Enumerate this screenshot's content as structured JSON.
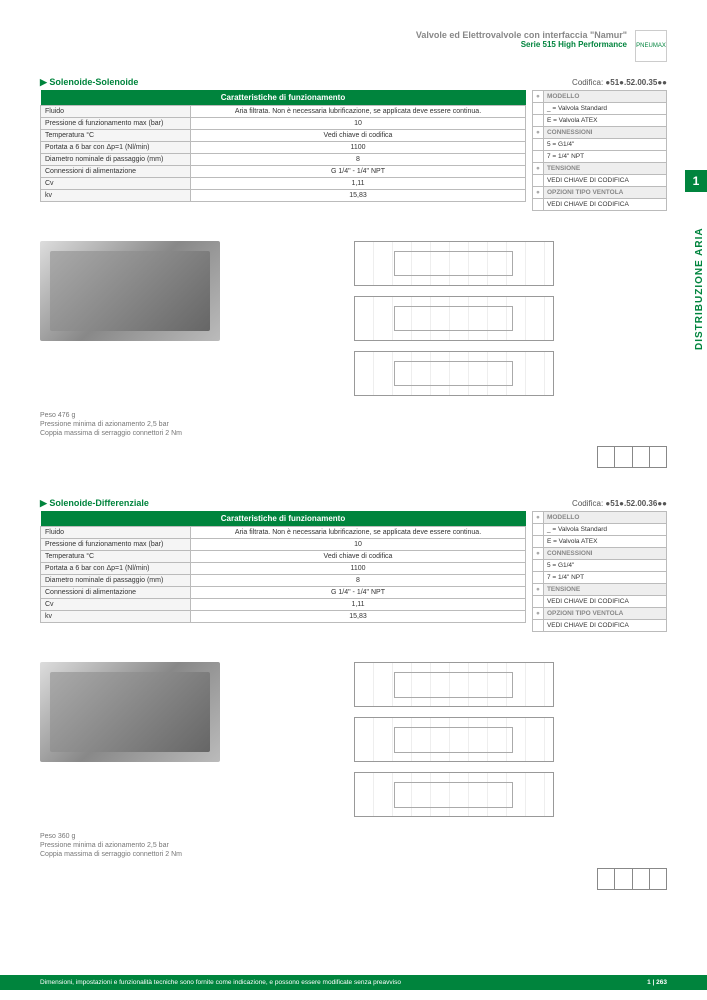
{
  "header": {
    "title": "Valvole ed Elettrovalvole con interfaccia \"Namur\"",
    "subtitle": "Serie 515 High Performance",
    "logo_text": "PNEUMAX"
  },
  "side_tab": {
    "number": "1",
    "label": "DISTRIBUZIONE ARIA"
  },
  "sections": [
    {
      "title": "Solenoide-Solenoide",
      "code_label": "Codifica:",
      "code": "●51●.52.00.35●●",
      "table_header": "Caratteristiche di funzionamento",
      "rows": [
        [
          "Fluido",
          "Aria filtrata. Non è necessaria lubrificazione, se applicata deve essere continua."
        ],
        [
          "Pressione di funzionamento max (bar)",
          "10"
        ],
        [
          "Temperatura °C",
          "Vedi chiave di codifica"
        ],
        [
          "Portata a 6 bar con Δp=1 (Nl/min)",
          "1100"
        ],
        [
          "Diametro nominale di passaggio (mm)",
          "8"
        ],
        [
          "Connessioni di alimentazione",
          "G 1/4\" - 1/4\" NPT"
        ],
        [
          "Cv",
          "1,11"
        ],
        [
          "kv",
          "15,83"
        ]
      ],
      "side_rows": [
        {
          "h": "MODELLO"
        },
        {
          "d": "_ = Valvola Standard"
        },
        {
          "d": "E = Valvola ATEX"
        },
        {
          "h": "CONNESSIONI"
        },
        {
          "d": "5 = G1/4\""
        },
        {
          "d": "7 = 1/4\" NPT"
        },
        {
          "h": "TENSIONE"
        },
        {
          "d": "VEDI CHIAVE DI CODIFICA"
        },
        {
          "h": "OPZIONI TIPO VENTOLA"
        },
        {
          "d": "VEDI CHIAVE DI CODIFICA"
        }
      ],
      "notes": [
        "Peso 476 g",
        "Pressione minima di azionamento 2,5 bar",
        "Coppia massima di serraggio connettori 2 Nm"
      ]
    },
    {
      "title": "Solenoide-Differenziale",
      "code_label": "Codifica:",
      "code": "●51●.52.00.36●●",
      "table_header": "Caratteristiche di funzionamento",
      "rows": [
        [
          "Fluido",
          "Aria filtrata. Non è necessaria lubrificazione, se applicata deve essere continua."
        ],
        [
          "Pressione di funzionamento max (bar)",
          "10"
        ],
        [
          "Temperatura °C",
          "Vedi chiave di codifica"
        ],
        [
          "Portata a 6 bar con Δp=1 (Nl/min)",
          "1100"
        ],
        [
          "Diametro nominale di passaggio (mm)",
          "8"
        ],
        [
          "Connessioni di alimentazione",
          "G 1/4\" - 1/4\" NPT"
        ],
        [
          "Cv",
          "1,11"
        ],
        [
          "kv",
          "15,83"
        ]
      ],
      "side_rows": [
        {
          "h": "MODELLO"
        },
        {
          "d": "_ = Valvola Standard"
        },
        {
          "d": "E = Valvola ATEX"
        },
        {
          "h": "CONNESSIONI"
        },
        {
          "d": "5 = G1/4\""
        },
        {
          "d": "7 = 1/4\" NPT"
        },
        {
          "h": "TENSIONE"
        },
        {
          "d": "VEDI CHIAVE DI CODIFICA"
        },
        {
          "h": "OPZIONI TIPO VENTOLA"
        },
        {
          "d": "VEDI CHIAVE DI CODIFICA"
        }
      ],
      "notes": [
        "Peso 360 g",
        "Pressione minima di azionamento 2,5 bar",
        "Coppia massima di serraggio connettori 2 Nm"
      ]
    }
  ],
  "footer": {
    "disclaimer": "Dimensioni, impostazioni e funzionalità tecniche sono fornite come indicazione, e possono essere modificate senza preavviso",
    "page": "1 | 263"
  },
  "colors": {
    "accent": "#00843D"
  }
}
